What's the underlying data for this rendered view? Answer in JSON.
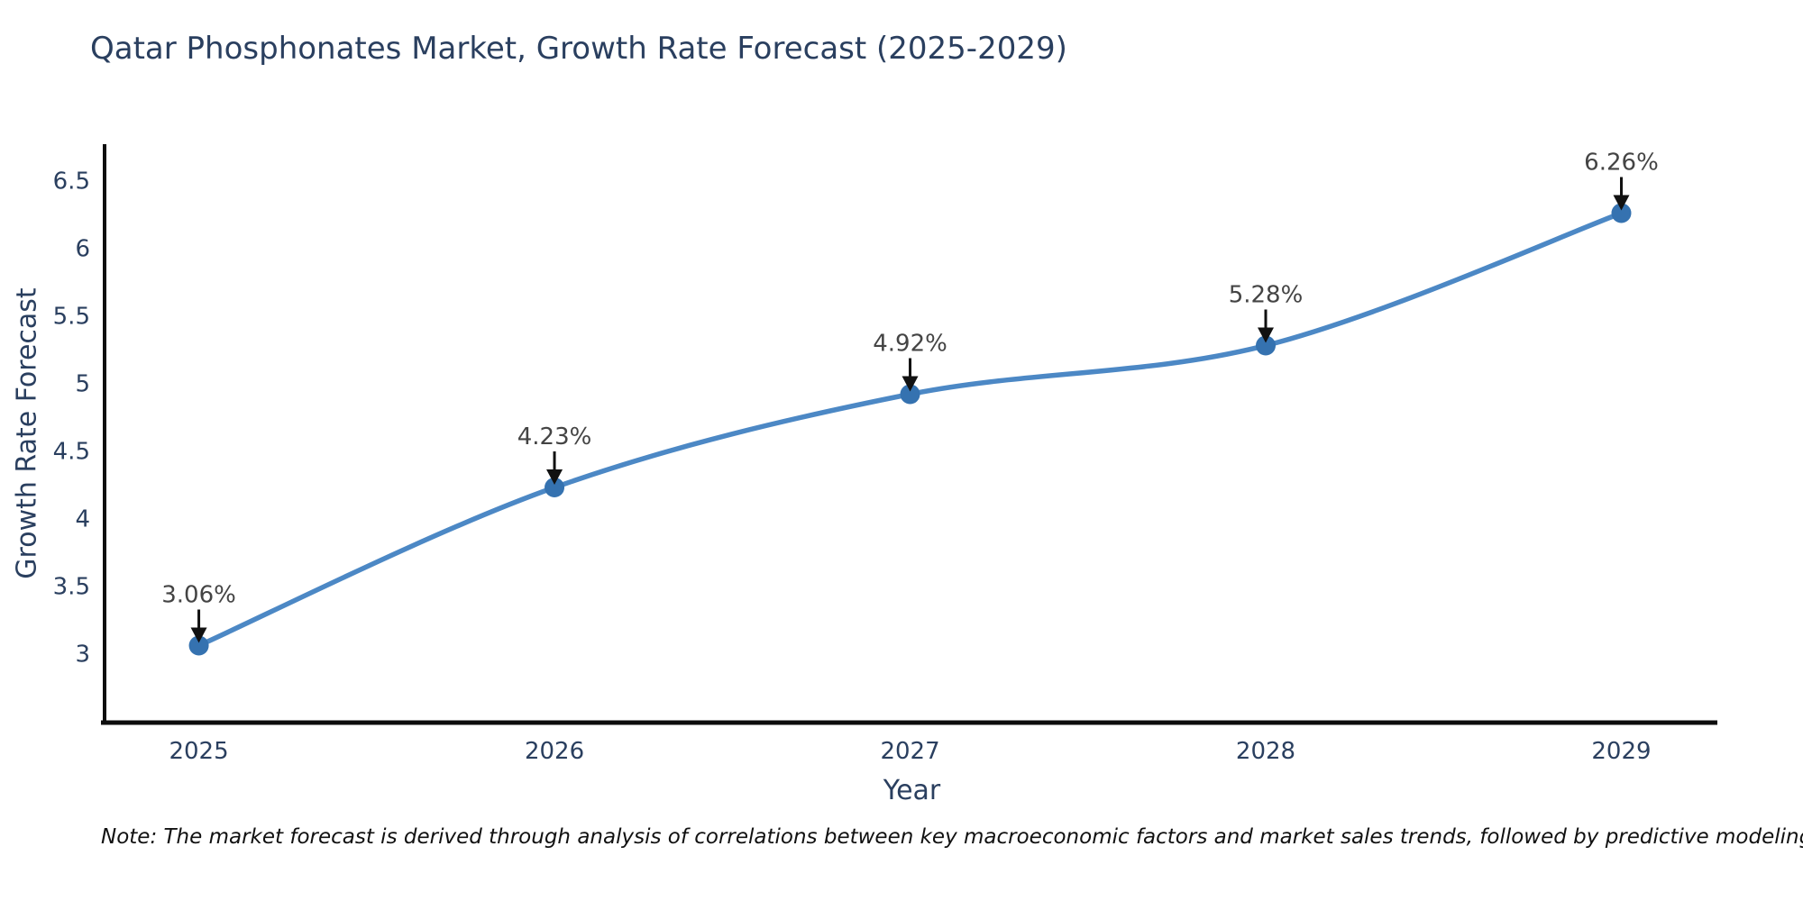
{
  "title": "Qatar Phosphonates Market, Growth Rate Forecast (2025-2029)",
  "note": "Note: The market forecast is derived through analysis of correlations between key macroeconomic factors and market sales trends, followed by predictive modeling to project future sales",
  "chart_data": {
    "type": "line",
    "title": "Qatar Phosphonates Market, Growth Rate Forecast (2025-2029)",
    "xlabel": "Year",
    "ylabel": "Growth Rate Forecast",
    "x": [
      2025,
      2026,
      2027,
      2028,
      2029
    ],
    "series": [
      {
        "name": "Growth Rate Forecast",
        "values": [
          3.06,
          4.23,
          4.92,
          5.28,
          6.26
        ]
      }
    ],
    "point_labels": [
      "3.06%",
      "4.23%",
      "4.92%",
      "5.28%",
      "6.26%"
    ],
    "x_ticks": [
      "2025",
      "2026",
      "2027",
      "2028",
      "2029"
    ],
    "y_ticks": [
      "3",
      "3.5",
      "4",
      "4.5",
      "5",
      "5.5",
      "6",
      "6.5"
    ],
    "xlim": [
      2024.74,
      2029.27
    ],
    "ylim": [
      2.49,
      6.77
    ],
    "grid": false,
    "legend_position": "none",
    "smooth": true,
    "line_color": "#4c88c5",
    "marker_color": "#3572b0",
    "arrow_color": "#111111",
    "axis_color": "#0d0d0d",
    "title_color": "#2a3f5f",
    "tick_color": "#2a3f5f",
    "annotation_color": "#444444"
  }
}
